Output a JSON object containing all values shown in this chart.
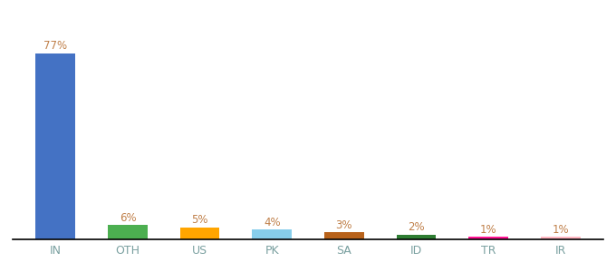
{
  "categories": [
    "IN",
    "OTH",
    "US",
    "PK",
    "SA",
    "ID",
    "TR",
    "IR"
  ],
  "values": [
    77,
    6,
    5,
    4,
    3,
    2,
    1,
    1
  ],
  "bar_colors": [
    "#4472C4",
    "#4CAF50",
    "#FFA500",
    "#87CEEB",
    "#B8621A",
    "#2E7D32",
    "#FF1493",
    "#FFB6C1"
  ],
  "labels": [
    "77%",
    "6%",
    "5%",
    "4%",
    "3%",
    "2%",
    "1%",
    "1%"
  ],
  "label_color": "#C0804A",
  "xlabel_color": "#7AA0A0",
  "ylim": [
    0,
    90
  ],
  "background_color": "#ffffff",
  "bar_width": 0.55
}
